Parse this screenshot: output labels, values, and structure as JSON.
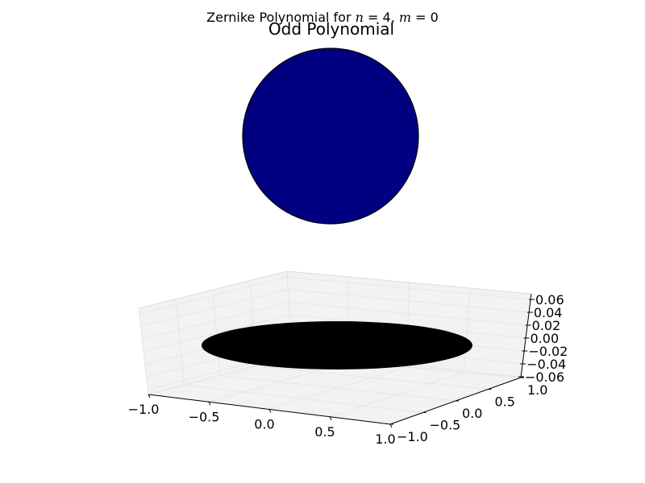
{
  "figure": {
    "suptitle_prefix": "Zernike Polynomial for ",
    "suptitle_n": "n",
    "suptitle_eq1": " = 4, ",
    "suptitle_m": "m",
    "suptitle_eq2": " = 0"
  },
  "chart_data": [
    {
      "type": "heatmap",
      "title": "Odd Polynomial",
      "shape": "unit disk",
      "values": "uniform",
      "fill_color": "#000080",
      "edge_color": "#000000"
    },
    {
      "type": "surface",
      "title": "",
      "x_ticks": [
        "−1.0",
        "−0.5",
        "0.0",
        "0.5",
        "1.0"
      ],
      "y_ticks": [
        "−1.0",
        "−0.5",
        "0.0",
        "0.5",
        "1.0"
      ],
      "z_ticks": [
        "0.06",
        "0.04",
        "0.02",
        "0.00",
        "−0.02",
        "−0.04",
        "−0.06"
      ],
      "xlim": [
        -1.0,
        1.0
      ],
      "ylim": [
        -1.0,
        1.0
      ],
      "zlim": [
        -0.06,
        0.06
      ],
      "z_value": 0.0,
      "surface_color": "#000000",
      "pane_color": "#f2f2f2",
      "grid": true
    }
  ]
}
